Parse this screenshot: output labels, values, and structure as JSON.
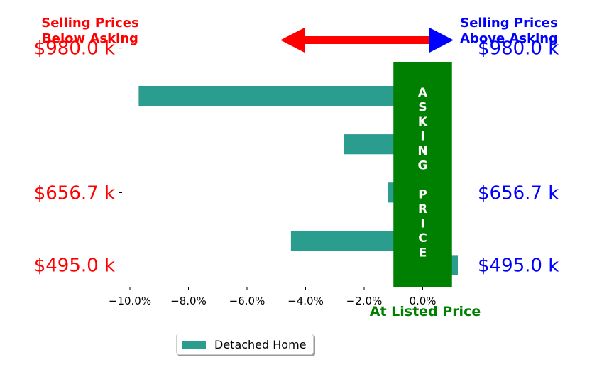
{
  "chart_data": {
    "type": "bar",
    "orientation": "horizontal",
    "x_tick_labels": [
      "−10.0%",
      "−8.0%",
      "−6.0%",
      "−4.0%",
      "−2.0%",
      "0.0%"
    ],
    "x_ticks": [
      -10,
      -8,
      -6,
      -4,
      -2,
      0
    ],
    "xlim": [
      -10.8,
      1.2
    ],
    "ylim": [
      445,
      1000
    ],
    "left_y_tick_labels": [
      "$980.0 k",
      "$656.7 k",
      "$495.0 k"
    ],
    "right_y_tick_labels": [
      "$980.0 k",
      "$656.7 k",
      "$495.0 k"
    ],
    "y_tick_values": [
      980,
      656.7,
      495
    ],
    "series": [
      {
        "name": "Detached Home",
        "color": "#2a9d8f",
        "points": [
          {
            "y": 873,
            "value": -9.7
          },
          {
            "y": 765,
            "value": -2.7
          },
          {
            "y": 657,
            "value": -1.2
          },
          {
            "y": 549,
            "value": -4.5
          },
          {
            "y": 495,
            "value": 1.2
          }
        ]
      }
    ],
    "bar_height_units": 86,
    "asking_band": {
      "from": -1.0,
      "to": 1.0,
      "color": "#008000",
      "label": "ASKING PRICE"
    },
    "annotations": {
      "left_title": [
        "Selling Prices",
        "Below Asking"
      ],
      "right_title": [
        "Selling Prices",
        "Above Asking"
      ],
      "bottom_label": "At Listed Price",
      "left_color": "#ff0000",
      "right_color": "#0000ff",
      "band_text_color": "#ffffff"
    },
    "legend": {
      "entries": [
        "Detached Home"
      ],
      "placement": "bottom-center"
    },
    "grid": false
  }
}
